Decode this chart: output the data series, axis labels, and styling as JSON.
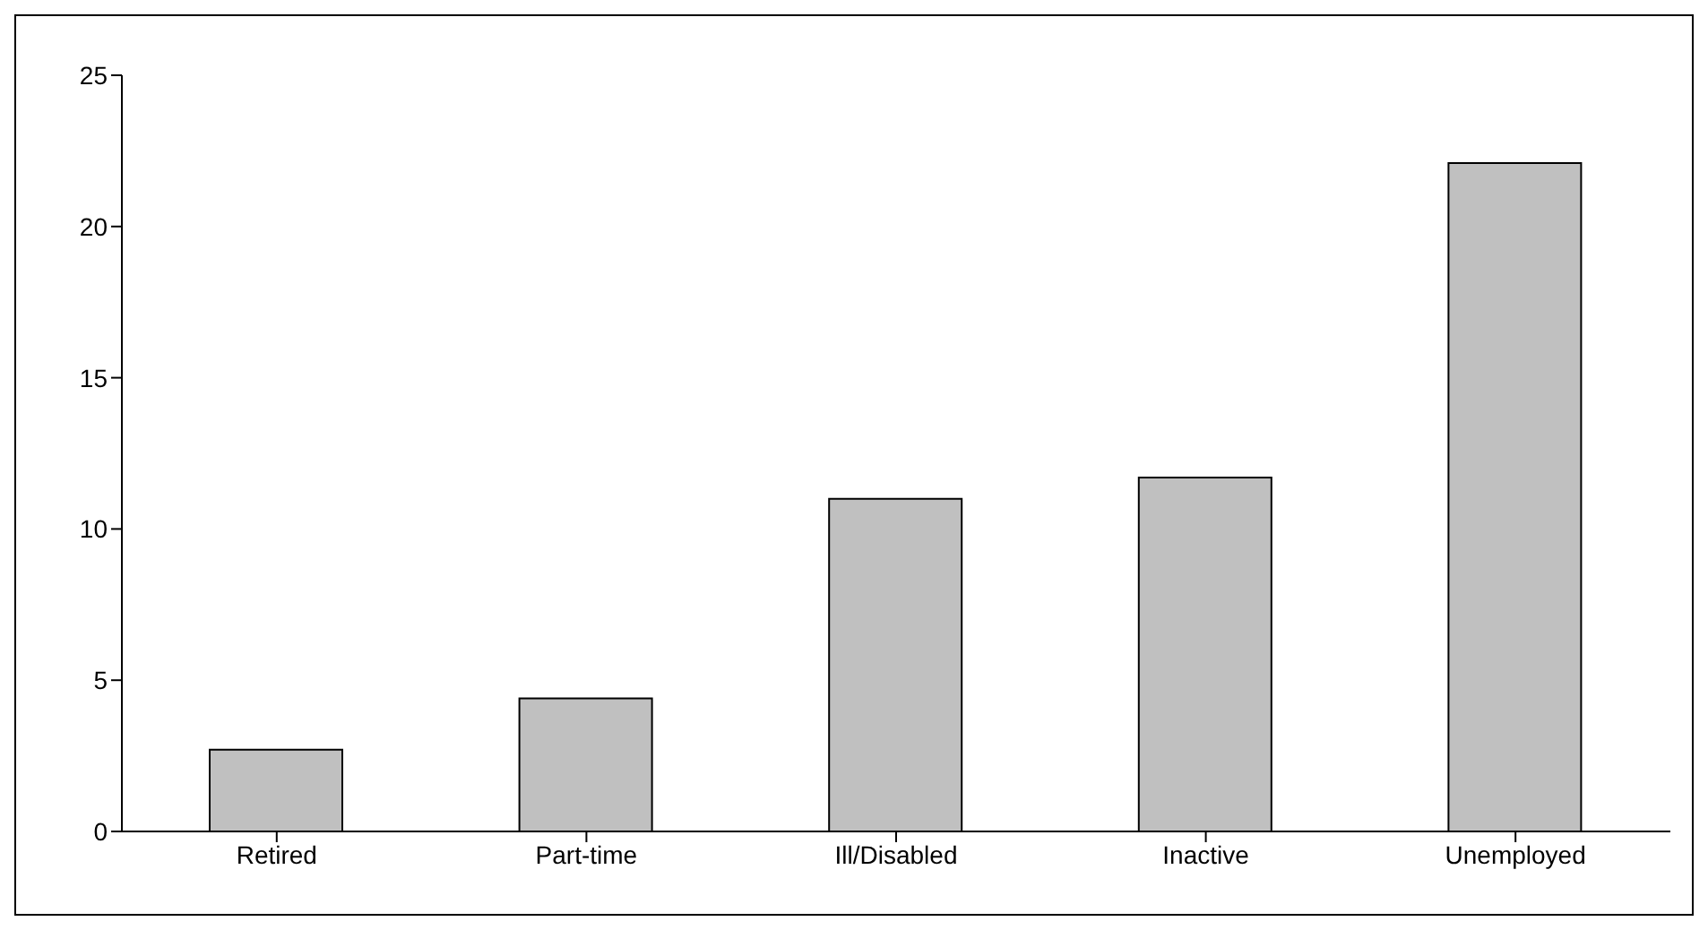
{
  "chart_data": {
    "type": "bar",
    "categories": [
      "Retired",
      "Part-time",
      "Ill/Disabled",
      "Inactive",
      "Unemployed"
    ],
    "values": [
      2.7,
      4.4,
      11.0,
      11.7,
      22.1
    ],
    "color": "#c0c0c0",
    "ylim": [
      0,
      25
    ],
    "yticks": [
      0,
      5,
      10,
      15,
      20,
      25
    ],
    "grid": false,
    "legend": false
  }
}
